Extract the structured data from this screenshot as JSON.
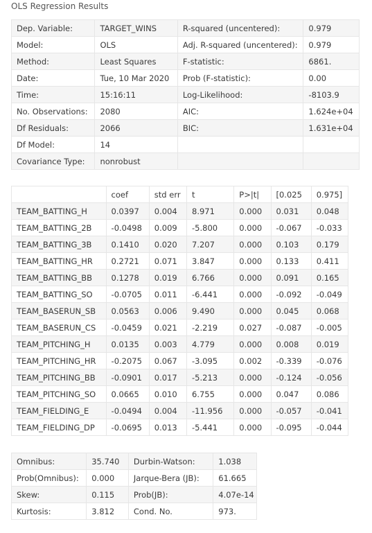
{
  "caption": "OLS Regression Results",
  "summary": [
    [
      "Dep. Variable:",
      "TARGET_WINS",
      "R-squared (uncentered):",
      "0.979"
    ],
    [
      "Model:",
      "OLS",
      "Adj. R-squared (uncentered):",
      "0.979"
    ],
    [
      "Method:",
      "Least Squares",
      "F-statistic:",
      "6861."
    ],
    [
      "Date:",
      "Tue, 10 Mar 2020",
      "Prob (F-statistic):",
      "0.00"
    ],
    [
      "Time:",
      "15:16:11",
      "Log-Likelihood:",
      "-8103.9"
    ],
    [
      "No. Observations:",
      "2080",
      "AIC:",
      "1.624e+04"
    ],
    [
      "Df Residuals:",
      "2066",
      "BIC:",
      "1.631e+04"
    ],
    [
      "Df Model:",
      "14",
      "",
      ""
    ],
    [
      "Covariance Type:",
      "nonrobust",
      "",
      ""
    ]
  ],
  "coef_headers": [
    "",
    "coef",
    "std err",
    "t",
    "P>|t|",
    "[0.025",
    "0.975]"
  ],
  "coef_rows": [
    [
      "TEAM_BATTING_H",
      "0.0397",
      "0.004",
      "8.971",
      "0.000",
      "0.031",
      "0.048"
    ],
    [
      "TEAM_BATTING_2B",
      "-0.0498",
      "0.009",
      "-5.800",
      "0.000",
      "-0.067",
      "-0.033"
    ],
    [
      "TEAM_BATTING_3B",
      "0.1410",
      "0.020",
      "7.207",
      "0.000",
      "0.103",
      "0.179"
    ],
    [
      "TEAM_BATTING_HR",
      "0.2721",
      "0.071",
      "3.847",
      "0.000",
      "0.133",
      "0.411"
    ],
    [
      "TEAM_BATTING_BB",
      "0.1278",
      "0.019",
      "6.766",
      "0.000",
      "0.091",
      "0.165"
    ],
    [
      "TEAM_BATTING_SO",
      "-0.0705",
      "0.011",
      "-6.441",
      "0.000",
      "-0.092",
      "-0.049"
    ],
    [
      "TEAM_BASERUN_SB",
      "0.0563",
      "0.006",
      "9.490",
      "0.000",
      "0.045",
      "0.068"
    ],
    [
      "TEAM_BASERUN_CS",
      "-0.0459",
      "0.021",
      "-2.219",
      "0.027",
      "-0.087",
      "-0.005"
    ],
    [
      "TEAM_PITCHING_H",
      "0.0135",
      "0.003",
      "4.779",
      "0.000",
      "0.008",
      "0.019"
    ],
    [
      "TEAM_PITCHING_HR",
      "-0.2075",
      "0.067",
      "-3.095",
      "0.002",
      "-0.339",
      "-0.076"
    ],
    [
      "TEAM_PITCHING_BB",
      "-0.0901",
      "0.017",
      "-5.213",
      "0.000",
      "-0.124",
      "-0.056"
    ],
    [
      "TEAM_PITCHING_SO",
      "0.0665",
      "0.010",
      "6.755",
      "0.000",
      "0.047",
      "0.086"
    ],
    [
      "TEAM_FIELDING_E",
      "-0.0494",
      "0.004",
      "-11.956",
      "0.000",
      "-0.057",
      "-0.041"
    ],
    [
      "TEAM_FIELDING_DP",
      "-0.0695",
      "0.013",
      "-5.441",
      "0.000",
      "-0.095",
      "-0.044"
    ]
  ],
  "diagnostics": [
    [
      "Omnibus:",
      "35.740",
      "Durbin-Watson:",
      "1.038"
    ],
    [
      "Prob(Omnibus):",
      "0.000",
      "Jarque-Bera (JB):",
      "61.665"
    ],
    [
      "Skew:",
      "0.115",
      "Prob(JB):",
      "4.07e-14"
    ],
    [
      "Kurtosis:",
      "3.812",
      "Cond. No.",
      "973."
    ]
  ]
}
